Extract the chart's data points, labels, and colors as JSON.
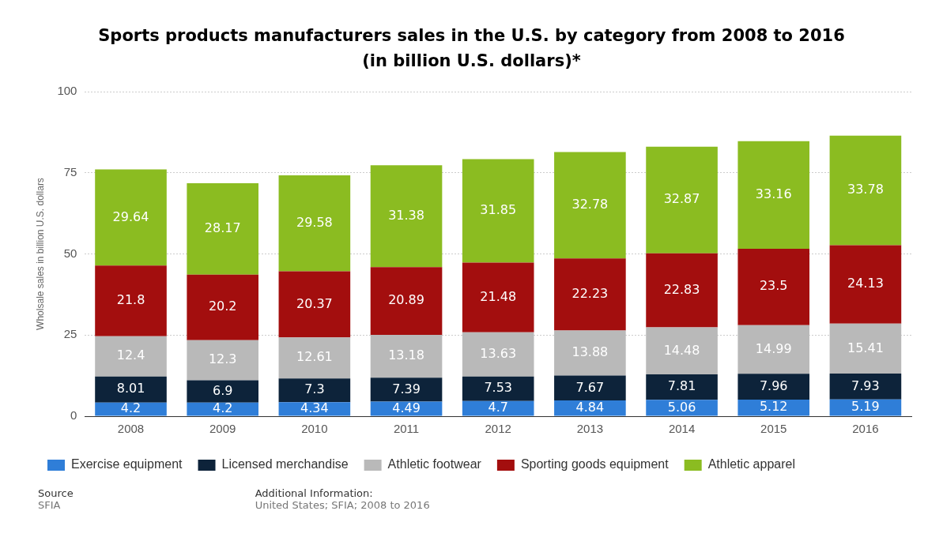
{
  "chart_data": {
    "type": "bar",
    "title": "Sports products manufacturers sales in the U.S. by category from 2008 to 2016 (in billion U.S. dollars)*",
    "ylabel": "Wholsale sales in billion U.S. dollars",
    "categories": [
      "2008",
      "2009",
      "2010",
      "2011",
      "2012",
      "2013",
      "2014",
      "2015",
      "2016"
    ],
    "stacked": true,
    "data_labels": true,
    "grid": "y",
    "legend": "bottom",
    "ylim": [
      0,
      100
    ],
    "yticks": [
      0,
      25,
      50,
      75,
      100
    ],
    "series": [
      {
        "name": "Exercise equipment",
        "color": "#2f7ed8",
        "values": [
          4.2,
          4.2,
          4.34,
          4.49,
          4.7,
          4.84,
          5.06,
          5.12,
          5.19
        ]
      },
      {
        "name": "Licensed merchandise",
        "color": "#0d233a",
        "values": [
          8.01,
          6.9,
          7.3,
          7.39,
          7.53,
          7.67,
          7.81,
          7.96,
          7.93
        ]
      },
      {
        "name": "Athletic footwear",
        "color": "#b9b9b9",
        "values": [
          12.4,
          12.3,
          12.61,
          13.18,
          13.63,
          13.88,
          14.48,
          14.99,
          15.41
        ]
      },
      {
        "name": "Sporting goods equipment",
        "color": "#a30e0e",
        "values": [
          21.8,
          20.2,
          20.37,
          20.89,
          21.48,
          22.23,
          22.83,
          23.5,
          24.13
        ]
      },
      {
        "name": "Athletic apparel",
        "color": "#8bbc21",
        "values": [
          29.64,
          28.17,
          29.58,
          31.38,
          31.85,
          32.78,
          32.87,
          33.16,
          33.78
        ]
      }
    ],
    "annotations": [
      "Source",
      "SFIA",
      "Additional Information:",
      "United States; SFIA; 2008 to 2016"
    ]
  }
}
